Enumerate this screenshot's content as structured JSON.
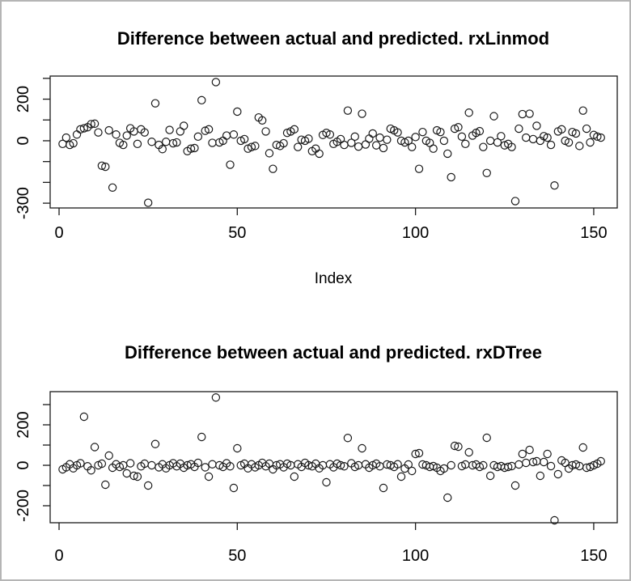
{
  "window": {
    "background": "#ffffff",
    "border_color": "#b5b5b5",
    "point_color": "#1a1a1a"
  },
  "chart_data": [
    {
      "type": "scatter",
      "title": "Difference between actual and predicted. rxLinmod",
      "xlabel": "Index",
      "ylabel": "",
      "marker": "open-circle",
      "legend": "none",
      "grid": false,
      "x_start": 1,
      "x_range": [
        -2.5,
        156.6
      ],
      "y_range": [
        -323,
        311
      ],
      "x_ticks": [
        {
          "v": 0,
          "label": "0"
        },
        {
          "v": 50,
          "label": "50"
        },
        {
          "v": 100,
          "label": "100"
        },
        {
          "v": 150,
          "label": "150"
        }
      ],
      "y_ticks": [
        {
          "v": 300,
          "label": ""
        },
        {
          "v": 200,
          "label": "200"
        },
        {
          "v": 100,
          "label": ""
        },
        {
          "v": 0,
          "label": "0"
        },
        {
          "v": -100,
          "label": ""
        },
        {
          "v": -200,
          "label": ""
        },
        {
          "v": -300,
          "label": "-300"
        }
      ],
      "values": [
        -15,
        15,
        -20,
        -12,
        30,
        55,
        60,
        65,
        80,
        82,
        40,
        -120,
        -125,
        50,
        -225,
        30,
        -10,
        -20,
        25,
        60,
        45,
        -15,
        55,
        40,
        -298,
        -5,
        180,
        -20,
        -40,
        -5,
        52,
        -12,
        -8,
        45,
        72,
        -50,
        -38,
        -35,
        20,
        195,
        48,
        55,
        -10,
        282,
        -8,
        0,
        25,
        -115,
        30,
        140,
        0,
        8,
        -38,
        -30,
        -25,
        112,
        98,
        45,
        -60,
        -135,
        -20,
        -25,
        -12,
        38,
        45,
        55,
        -30,
        5,
        0,
        10,
        -50,
        -38,
        -62,
        28,
        38,
        30,
        -15,
        -5,
        8,
        -20,
        145,
        -10,
        20,
        -28,
        130,
        -18,
        10,
        35,
        -22,
        15,
        -35,
        5,
        58,
        50,
        40,
        0,
        -8,
        0,
        -30,
        18,
        -135,
        42,
        0,
        -10,
        -38,
        50,
        42,
        0,
        -62,
        -175,
        58,
        65,
        20,
        -15,
        135,
        25,
        38,
        46,
        -30,
        -155,
        0,
        118,
        -8,
        22,
        -22,
        -15,
        -30,
        -290,
        58,
        128,
        15,
        130,
        8,
        72,
        0,
        22,
        15,
        -20,
        -215,
        45,
        55,
        0,
        -8,
        42,
        35,
        -25,
        145,
        58,
        -8,
        28,
        20,
        15
      ]
    },
    {
      "type": "scatter",
      "title": "Difference between actual and predicted. rxDTree",
      "xlabel": "",
      "ylabel": "",
      "marker": "open-circle",
      "legend": "none",
      "grid": false,
      "x_start": 1,
      "x_range": [
        -2.5,
        156.6
      ],
      "y_range": [
        -284,
        364
      ],
      "x_ticks": [
        {
          "v": 0,
          "label": "0"
        },
        {
          "v": 50,
          "label": "50"
        },
        {
          "v": 100,
          "label": "100"
        },
        {
          "v": 150,
          "label": "150"
        }
      ],
      "y_ticks": [
        {
          "v": 300,
          "label": ""
        },
        {
          "v": 200,
          "label": "200"
        },
        {
          "v": 100,
          "label": ""
        },
        {
          "v": 0,
          "label": "0"
        },
        {
          "v": -100,
          "label": ""
        },
        {
          "v": -200,
          "label": "-200"
        }
      ],
      "values": [
        -20,
        -10,
        5,
        -15,
        0,
        10,
        240,
        -5,
        -25,
        90,
        0,
        8,
        -96,
        48,
        -12,
        5,
        -8,
        0,
        -40,
        10,
        -52,
        -56,
        -5,
        8,
        -100,
        0,
        105,
        -10,
        5,
        -15,
        0,
        10,
        -5,
        8,
        -12,
        0,
        5,
        -8,
        12,
        140,
        -10,
        -56,
        5,
        335,
        0,
        -8,
        10,
        -5,
        -112,
        84,
        0,
        8,
        -15,
        5,
        -10,
        0,
        12,
        -5,
        8,
        -20,
        0,
        5,
        -10,
        8,
        0,
        -56,
        5,
        -8,
        12,
        0,
        -5,
        8,
        -15,
        0,
        -84,
        5,
        -10,
        8,
        0,
        -5,
        135,
        10,
        -8,
        0,
        84,
        5,
        -12,
        0,
        8,
        -5,
        -112,
        4,
        0,
        -8,
        5,
        -56,
        -16,
        4,
        -28,
        56,
        60,
        4,
        0,
        -8,
        -4,
        -12,
        -28,
        -16,
        -160,
        0,
        96,
        92,
        -4,
        4,
        64,
        0,
        4,
        -8,
        0,
        136,
        -52,
        0,
        -8,
        -4,
        -12,
        -8,
        -4,
        -100,
        4,
        56,
        12,
        76,
        16,
        20,
        -52,
        16,
        56,
        -4,
        -272,
        -44,
        24,
        12,
        -16,
        0,
        4,
        -4,
        88,
        -12,
        -8,
        0,
        8,
        20
      ]
    }
  ]
}
